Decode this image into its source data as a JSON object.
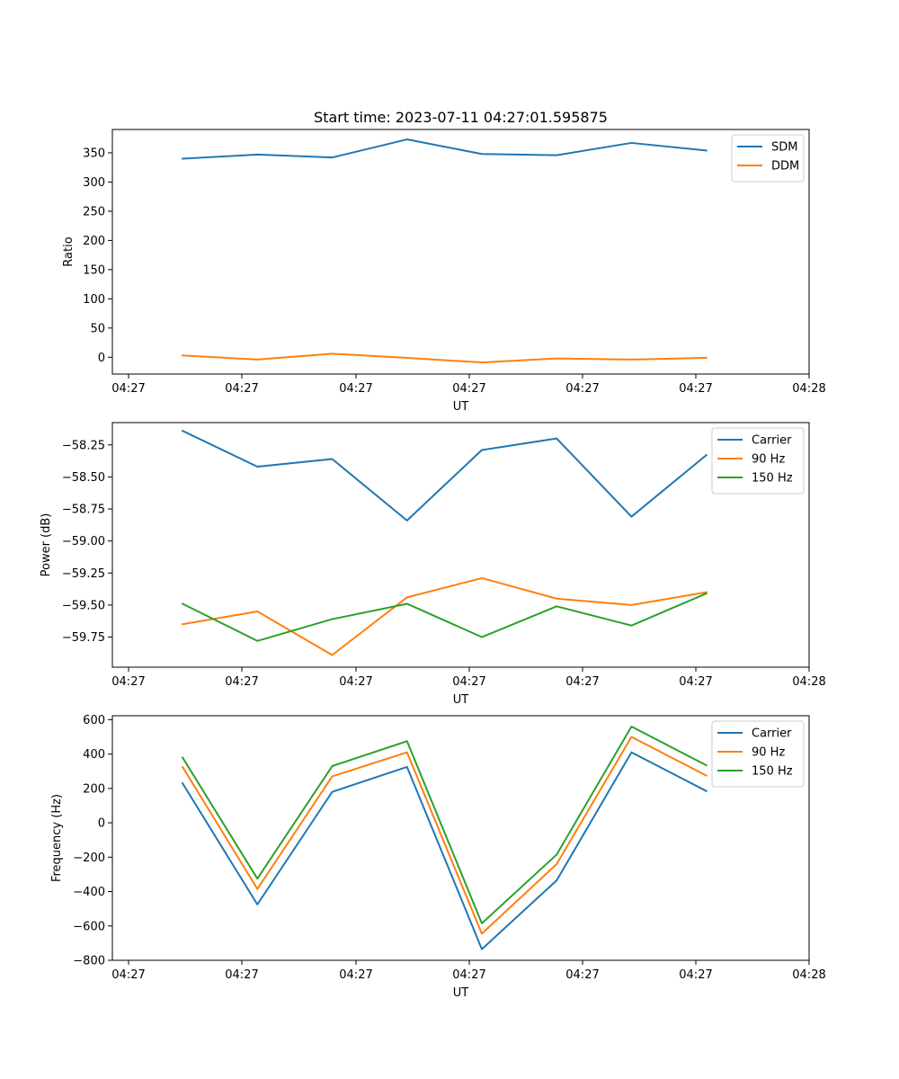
{
  "figure": {
    "title": "Start time: 2023-07-11 04:27:01.595875"
  },
  "chart_data": [
    {
      "type": "line",
      "title": "Start time: 2023-07-11 04:27:01.595875",
      "xlabel": "UT",
      "ylabel": "Ratio",
      "x_tick_labels": [
        "04:27",
        "04:27",
        "04:27",
        "04:27",
        "04:27",
        "04:27",
        "04:28"
      ],
      "y_ticks": [
        0,
        50,
        100,
        150,
        200,
        250,
        300,
        350
      ],
      "ylim": [
        -28.8,
        390
      ],
      "xlim": [
        -0.938,
        8.374
      ],
      "x": [
        0,
        1,
        2,
        3,
        4,
        5,
        6,
        7
      ],
      "series": [
        {
          "name": "SDM",
          "color": "#1f77b4",
          "values": [
            340,
            347,
            342,
            373,
            348,
            346,
            367,
            354
          ]
        },
        {
          "name": "DDM",
          "color": "#ff7f0e",
          "values": [
            3,
            -4,
            6,
            -1,
            -9,
            -2,
            -4,
            -1
          ]
        }
      ],
      "legend": "top-right",
      "grid": false
    },
    {
      "type": "line",
      "title": "",
      "xlabel": "UT",
      "ylabel": "Power (dB)",
      "x_tick_labels": [
        "04:27",
        "04:27",
        "04:27",
        "04:27",
        "04:27",
        "04:27",
        "04:28"
      ],
      "y_ticks": [
        -59.75,
        -59.5,
        -59.25,
        -59.0,
        -58.75,
        -58.5,
        -58.25
      ],
      "y_tick_labels": [
        "−59.75",
        "−59.50",
        "−59.25",
        "−59.00",
        "−58.75",
        "−58.50",
        "−58.25"
      ],
      "ylim": [
        -59.985,
        -58.076
      ],
      "xlim": [
        -0.938,
        8.374
      ],
      "x": [
        0,
        1,
        2,
        3,
        4,
        5,
        6,
        7
      ],
      "series": [
        {
          "name": "Carrier",
          "color": "#1f77b4",
          "values": [
            -58.14,
            -58.42,
            -58.36,
            -58.84,
            -58.29,
            -58.2,
            -58.81,
            -58.33
          ]
        },
        {
          "name": "90 Hz",
          "color": "#ff7f0e",
          "values": [
            -59.65,
            -59.55,
            -59.89,
            -59.44,
            -59.29,
            -59.45,
            -59.5,
            -59.4
          ]
        },
        {
          "name": "150 Hz",
          "color": "#2ca02c",
          "values": [
            -59.49,
            -59.78,
            -59.61,
            -59.49,
            -59.75,
            -59.51,
            -59.66,
            -59.41
          ]
        }
      ],
      "legend": "top-right",
      "grid": false
    },
    {
      "type": "line",
      "title": "",
      "xlabel": "UT",
      "ylabel": "Frequency (Hz)",
      "x_tick_labels": [
        "04:27",
        "04:27",
        "04:27",
        "04:27",
        "04:27",
        "04:27",
        "04:28"
      ],
      "y_ticks": [
        -800,
        -600,
        -400,
        -200,
        0,
        200,
        400,
        600
      ],
      "y_tick_labels": [
        "−800",
        "−600",
        "−400",
        "−200",
        "0",
        "200",
        "400",
        "600"
      ],
      "ylim": [
        -800,
        623
      ],
      "xlim": [
        -0.938,
        8.374
      ],
      "x": [
        0,
        1,
        2,
        3,
        4,
        5,
        6,
        7
      ],
      "series": [
        {
          "name": "Carrier",
          "color": "#1f77b4",
          "values": [
            230,
            -475,
            180,
            325,
            -735,
            -335,
            410,
            185
          ]
        },
        {
          "name": "90 Hz",
          "color": "#ff7f0e",
          "values": [
            325,
            -385,
            270,
            410,
            -645,
            -240,
            500,
            275
          ]
        },
        {
          "name": "150 Hz",
          "color": "#2ca02c",
          "values": [
            380,
            -325,
            330,
            475,
            -585,
            -185,
            560,
            335
          ]
        }
      ],
      "legend": "top-right",
      "grid": false
    }
  ]
}
